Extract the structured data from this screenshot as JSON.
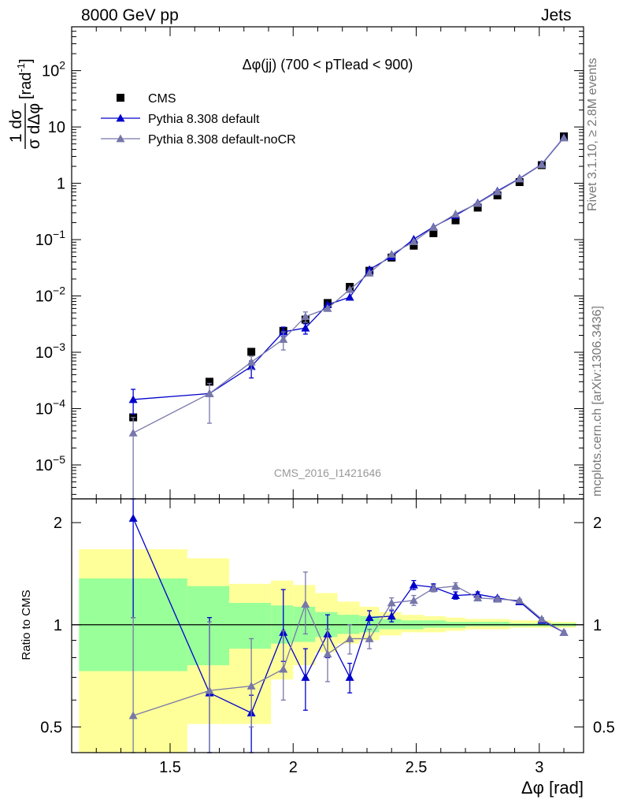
{
  "header": {
    "left": "8000 GeV pp",
    "right": "Jets"
  },
  "side_labels": {
    "rivet": "Rivet 3.1.10, ≥ 2.8M events",
    "mcplots": "mcplots.cern.ch [arXiv:1306.3436]"
  },
  "chart_data": [
    {
      "type": "scatter",
      "panel": "main",
      "title": "Δφ(jj) (700 < pTlead <  900)",
      "xlabel": "Δφ [rad]",
      "ylabel": "1/σ dσ/dΔφ [rad⁻¹]",
      "ylabel_parts": {
        "frac_num": "1 dσ",
        "frac_den": "σ dΔφ",
        "unit": "[rad",
        "unit_exp": "-1",
        "unit_close": "]"
      },
      "yscale": "log",
      "xlim": [
        1.1,
        3.18
      ],
      "ylim": [
        2.5e-06,
        600
      ],
      "x_ticks": [
        1.5,
        2,
        2.5,
        3
      ],
      "y_ticks": [
        {
          "value": 1e-05,
          "base": "10",
          "exp": "−5"
        },
        {
          "value": 0.0001,
          "base": "10",
          "exp": "−4"
        },
        {
          "value": 0.001,
          "base": "10",
          "exp": "−3"
        },
        {
          "value": 0.01,
          "base": "10",
          "exp": "−2"
        },
        {
          "value": 0.1,
          "base": "10",
          "exp": "−1"
        },
        {
          "value": 1,
          "base": "1",
          "exp": ""
        },
        {
          "value": 10,
          "base": "10",
          "exp": ""
        },
        {
          "value": 100,
          "base": "10",
          "exp": "2"
        }
      ],
      "watermark": "CMS_2016_I1421646",
      "legend_placement": "top-left",
      "series": [
        {
          "name": "CMS",
          "marker": "square",
          "color": "#000000",
          "points": [
            {
              "x": 1.35,
              "y": 7e-05,
              "xerr": 0.0
            },
            {
              "x": 1.66,
              "y": 0.0003,
              "xerr": 0.0
            },
            {
              "x": 1.83,
              "y": 0.00102,
              "xerr": 0.0
            },
            {
              "x": 1.96,
              "y": 0.0024,
              "xerr": 0.0
            },
            {
              "x": 2.05,
              "y": 0.0038,
              "xerr": 0.0
            },
            {
              "x": 2.14,
              "y": 0.0075,
              "xerr": 0.0
            },
            {
              "x": 2.23,
              "y": 0.0145,
              "xerr": 0.0
            },
            {
              "x": 2.31,
              "y": 0.028,
              "xerr": 0.0
            },
            {
              "x": 2.4,
              "y": 0.048,
              "xerr": 0.0
            },
            {
              "x": 2.49,
              "y": 0.078,
              "xerr": 0.0
            },
            {
              "x": 2.57,
              "y": 0.13,
              "xerr": 0.0
            },
            {
              "x": 2.66,
              "y": 0.22,
              "xerr": 0.0
            },
            {
              "x": 2.75,
              "y": 0.37,
              "xerr": 0.0
            },
            {
              "x": 2.83,
              "y": 0.61,
              "xerr": 0.0
            },
            {
              "x": 2.92,
              "y": 1.05,
              "xerr": 0.0
            },
            {
              "x": 3.01,
              "y": 2.1,
              "xerr": 0.0
            },
            {
              "x": 3.1,
              "y": 6.8,
              "xerr": 0.0
            }
          ]
        },
        {
          "name": "Pythia 8.308 default",
          "marker": "triangle",
          "color": "#0000cc",
          "points": [
            {
              "x": 1.35,
              "y": 0.000145,
              "lo": 8e-05,
              "hi": 0.00022
            },
            {
              "x": 1.66,
              "y": 0.000185
            },
            {
              "x": 1.83,
              "y": 0.00056,
              "lo": 0.00035,
              "hi": 0.0007
            },
            {
              "x": 1.96,
              "y": 0.0023,
              "lo": 0.0019,
              "hi": 0.0028
            },
            {
              "x": 2.05,
              "y": 0.0027,
              "lo": 0.0021,
              "hi": 0.0032
            },
            {
              "x": 2.14,
              "y": 0.007
            },
            {
              "x": 2.23,
              "y": 0.0095
            },
            {
              "x": 2.31,
              "y": 0.0295
            },
            {
              "x": 2.4,
              "y": 0.05
            },
            {
              "x": 2.49,
              "y": 0.102
            },
            {
              "x": 2.57,
              "y": 0.168
            },
            {
              "x": 2.66,
              "y": 0.27
            },
            {
              "x": 2.75,
              "y": 0.45
            },
            {
              "x": 2.83,
              "y": 0.73
            },
            {
              "x": 2.92,
              "y": 1.22
            },
            {
              "x": 3.01,
              "y": 2.18
            },
            {
              "x": 3.1,
              "y": 6.5
            }
          ]
        },
        {
          "name": "Pythia 8.308 default-noCR",
          "marker": "triangle",
          "color": "#7777aa",
          "points": [
            {
              "x": 1.35,
              "y": 3.7e-05,
              "lo": 2e-06,
              "hi": 7e-05
            },
            {
              "x": 1.66,
              "y": 0.000185,
              "lo": 5.5e-05,
              "hi": 0.00028
            },
            {
              "x": 1.83,
              "y": 0.00067,
              "lo": 0.0005,
              "hi": 0.00085
            },
            {
              "x": 1.96,
              "y": 0.0017,
              "lo": 0.0011,
              "hi": 0.0023
            },
            {
              "x": 2.05,
              "y": 0.0043,
              "lo": 0.0034,
              "hi": 0.0052
            },
            {
              "x": 2.14,
              "y": 0.006
            },
            {
              "x": 2.23,
              "y": 0.013
            },
            {
              "x": 2.31,
              "y": 0.0255
            },
            {
              "x": 2.4,
              "y": 0.055
            },
            {
              "x": 2.49,
              "y": 0.092
            },
            {
              "x": 2.57,
              "y": 0.165
            },
            {
              "x": 2.66,
              "y": 0.285
            },
            {
              "x": 2.75,
              "y": 0.44
            },
            {
              "x": 2.83,
              "y": 0.71
            },
            {
              "x": 2.92,
              "y": 1.2
            },
            {
              "x": 3.01,
              "y": 2.15
            },
            {
              "x": 3.1,
              "y": 6.4
            }
          ]
        }
      ]
    },
    {
      "type": "line",
      "panel": "ratio",
      "xlabel": "Δφ [rad]",
      "ylabel": "Ratio to CMS",
      "yscale": "log",
      "xlim": [
        1.1,
        3.18
      ],
      "ylim": [
        0.42,
        2.35
      ],
      "x_ticks": [
        1.5,
        2,
        2.5,
        3
      ],
      "y_ticks": [
        0.5,
        1,
        2
      ],
      "bands": {
        "edges": [
          1.13,
          1.57,
          1.74,
          1.91,
          2.0,
          2.09,
          2.18,
          2.27,
          2.35,
          2.44,
          2.53,
          2.62,
          2.7,
          2.79,
          2.88,
          2.97,
          3.05,
          3.15
        ],
        "yellow": [
          [
            0.36,
            1.67
          ],
          [
            0.51,
            1.57
          ],
          [
            0.51,
            1.32
          ],
          [
            0.69,
            1.35
          ],
          [
            0.76,
            1.31
          ],
          [
            0.83,
            1.24
          ],
          [
            0.88,
            1.17
          ],
          [
            0.9,
            1.13
          ],
          [
            0.93,
            1.09
          ],
          [
            0.95,
            1.07
          ],
          [
            0.95,
            1.06
          ],
          [
            0.96,
            1.05
          ],
          [
            0.97,
            1.04
          ],
          [
            0.97,
            1.04
          ],
          [
            0.98,
            1.03
          ],
          [
            0.98,
            1.03
          ],
          [
            0.98,
            1.02
          ]
        ],
        "green": [
          [
            0.73,
            1.37
          ],
          [
            0.76,
            1.3
          ],
          [
            0.85,
            1.16
          ],
          [
            0.88,
            1.14
          ],
          [
            0.89,
            1.13
          ],
          [
            0.92,
            1.09
          ],
          [
            0.94,
            1.07
          ],
          [
            0.95,
            1.06
          ],
          [
            0.97,
            1.04
          ],
          [
            0.97,
            1.03
          ],
          [
            0.98,
            1.03
          ],
          [
            0.98,
            1.02
          ],
          [
            0.99,
            1.02
          ],
          [
            0.99,
            1.02
          ],
          [
            0.99,
            1.01
          ],
          [
            0.99,
            1.01
          ],
          [
            0.99,
            1.01
          ]
        ]
      },
      "series": [
        {
          "name": "Pythia 8.308 default",
          "color": "#0000cc",
          "points": [
            {
              "x": 1.35,
              "y": 2.06,
              "lo": 1.05,
              "hi": 2.35
            },
            {
              "x": 1.66,
              "y": 0.63,
              "lo": 0.42,
              "hi": 1.05
            },
            {
              "x": 1.83,
              "y": 0.55,
              "lo": 0.42,
              "hi": 0.62
            },
            {
              "x": 1.96,
              "y": 0.95,
              "lo": 0.78,
              "hi": 1.27
            },
            {
              "x": 2.05,
              "y": 0.7,
              "lo": 0.56,
              "hi": 0.85
            },
            {
              "x": 2.14,
              "y": 0.94,
              "lo": 0.8,
              "hi": 1.07
            },
            {
              "x": 2.23,
              "y": 0.7,
              "lo": 0.63,
              "hi": 0.77
            },
            {
              "x": 2.31,
              "y": 1.05,
              "lo": 1.0,
              "hi": 1.1
            },
            {
              "x": 2.4,
              "y": 1.06,
              "lo": 1.02,
              "hi": 1.1
            },
            {
              "x": 2.49,
              "y": 1.31,
              "lo": 1.27,
              "hi": 1.35
            },
            {
              "x": 2.57,
              "y": 1.29,
              "lo": 1.26,
              "hi": 1.32
            },
            {
              "x": 2.66,
              "y": 1.22,
              "lo": 1.19,
              "hi": 1.25
            },
            {
              "x": 2.75,
              "y": 1.23,
              "lo": 1.21,
              "hi": 1.25
            },
            {
              "x": 2.83,
              "y": 1.2,
              "lo": 1.19,
              "hi": 1.21
            },
            {
              "x": 2.92,
              "y": 1.17,
              "lo": 1.16,
              "hi": 1.18
            },
            {
              "x": 3.01,
              "y": 1.03,
              "lo": 1.02,
              "hi": 1.04
            },
            {
              "x": 3.1,
              "y": 0.95,
              "lo": 0.94,
              "hi": 0.96
            }
          ]
        },
        {
          "name": "Pythia 8.308 default-noCR",
          "color": "#7777aa",
          "points": [
            {
              "x": 1.35,
              "y": 0.54,
              "lo": 0.42,
              "hi": 1.05
            },
            {
              "x": 1.66,
              "y": 0.64,
              "lo": 0.42,
              "hi": 1.02
            },
            {
              "x": 1.83,
              "y": 0.66,
              "lo": 0.5,
              "hi": 0.91
            },
            {
              "x": 1.96,
              "y": 0.74,
              "lo": 0.6,
              "hi": 0.96
            },
            {
              "x": 2.05,
              "y": 1.15,
              "lo": 0.94,
              "hi": 1.43
            },
            {
              "x": 2.14,
              "y": 0.82,
              "lo": 0.68,
              "hi": 0.97
            },
            {
              "x": 2.23,
              "y": 0.91,
              "lo": 0.82,
              "hi": 1.0
            },
            {
              "x": 2.31,
              "y": 0.91,
              "lo": 0.85,
              "hi": 0.97
            },
            {
              "x": 2.4,
              "y": 1.16,
              "lo": 1.11,
              "hi": 1.2
            },
            {
              "x": 2.49,
              "y": 1.18,
              "lo": 1.14,
              "hi": 1.22
            },
            {
              "x": 2.57,
              "y": 1.28,
              "lo": 1.25,
              "hi": 1.31
            },
            {
              "x": 2.66,
              "y": 1.3,
              "lo": 1.27,
              "hi": 1.33
            },
            {
              "x": 2.75,
              "y": 1.2,
              "lo": 1.18,
              "hi": 1.22
            },
            {
              "x": 2.83,
              "y": 1.19,
              "lo": 1.18,
              "hi": 1.2
            },
            {
              "x": 2.92,
              "y": 1.18,
              "lo": 1.17,
              "hi": 1.19
            },
            {
              "x": 3.01,
              "y": 1.04,
              "lo": 1.03,
              "hi": 1.05
            },
            {
              "x": 3.1,
              "y": 0.95,
              "lo": 0.94,
              "hi": 0.96
            }
          ]
        }
      ]
    }
  ]
}
